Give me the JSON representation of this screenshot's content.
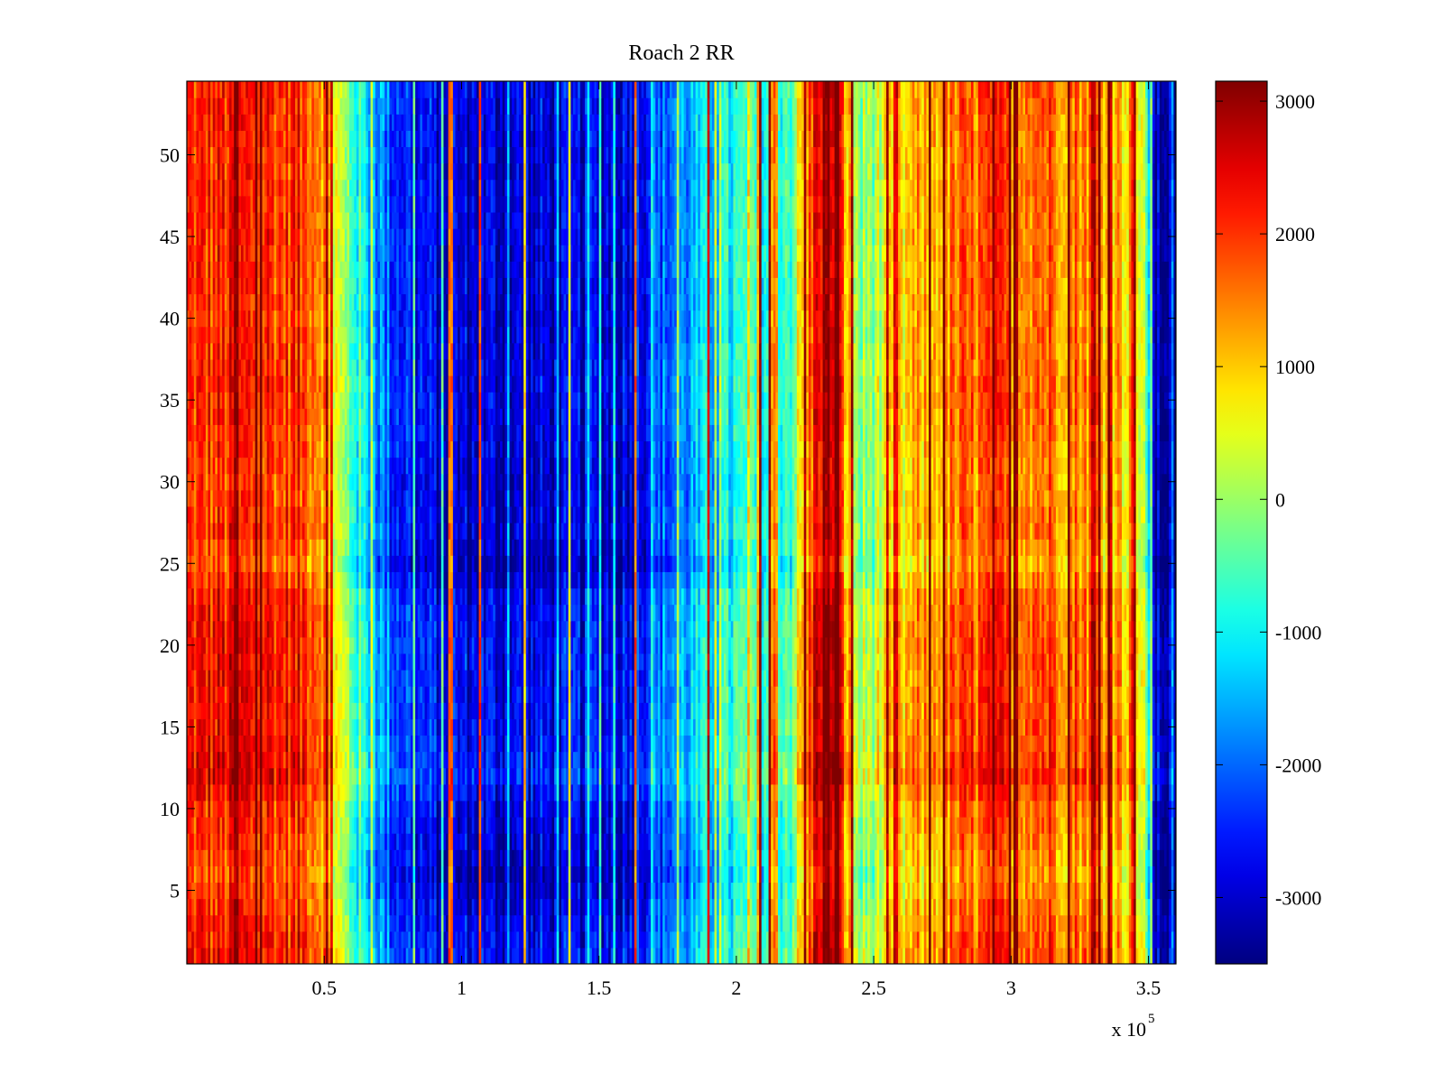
{
  "chart_data": {
    "type": "heatmap",
    "title": "Roach 2 RR",
    "xlabel": "",
    "ylabel": "",
    "x_multiplier_label": "x 10",
    "x_multiplier_exponent": "5",
    "xlim": [
      0,
      3.6
    ],
    "ylim": [
      0.5,
      54.5
    ],
    "x_ticks": [
      0.5,
      1,
      1.5,
      2,
      2.5,
      3,
      3.5
    ],
    "x_tick_labels": [
      "0.5",
      "1",
      "1.5",
      "2",
      "2.5",
      "3",
      "3.5"
    ],
    "y_ticks": [
      5,
      10,
      15,
      20,
      25,
      30,
      35,
      40,
      45,
      50
    ],
    "y_tick_labels": [
      "5",
      "10",
      "15",
      "20",
      "25",
      "30",
      "35",
      "40",
      "45",
      "50"
    ],
    "rows": 54,
    "colormap": "jet",
    "colorbar": {
      "range": [
        -3500,
        3150
      ],
      "ticks": [
        -3000,
        -2000,
        -1000,
        0,
        1000,
        2000,
        3000
      ],
      "tick_labels": [
        "-3000",
        "-2000",
        "-1000",
        "0",
        "1000",
        "2000",
        "3000"
      ]
    },
    "column_profile": {
      "x": [
        0.0,
        0.25,
        0.45,
        0.5,
        0.55,
        0.65,
        0.75,
        0.9,
        1.0,
        1.2,
        1.4,
        1.6,
        1.7,
        1.8,
        2.0,
        2.2,
        2.3,
        2.35,
        2.4,
        2.45,
        2.55,
        2.7,
        2.9,
        3.0,
        3.1,
        3.3,
        3.45,
        3.5,
        3.52,
        3.6
      ],
      "values": [
        1900,
        2050,
        1850,
        1500,
        200,
        -1200,
        -2300,
        -2900,
        -3000,
        -3050,
        -3000,
        -2800,
        -2300,
        -1800,
        -1000,
        -500,
        2600,
        2800,
        1200,
        -300,
        400,
        1200,
        1600,
        1700,
        1700,
        1400,
        900,
        -800,
        -3200,
        -3300
      ]
    },
    "row_profile": {
      "y": [
        1,
        3,
        6,
        8,
        10,
        12,
        14,
        17,
        20,
        23,
        25,
        27,
        30,
        33,
        36,
        40,
        45,
        50,
        54
      ],
      "values": [
        300,
        150,
        -250,
        0,
        100,
        550,
        350,
        250,
        300,
        200,
        -300,
        50,
        -100,
        50,
        150,
        0,
        100,
        50,
        150
      ]
    },
    "stripes": [
      {
        "x": 0.18,
        "value": 3000
      },
      {
        "x": 0.51,
        "value": 2900
      },
      {
        "x": 0.96,
        "value": 1500
      },
      {
        "x": 1.07,
        "value": 1800
      },
      {
        "x": 1.23,
        "value": 700
      },
      {
        "x": 1.39,
        "value": 400
      },
      {
        "x": 1.63,
        "value": 1600
      },
      {
        "x": 1.9,
        "value": 2500
      },
      {
        "x": 2.09,
        "value": 3100
      },
      {
        "x": 2.12,
        "value": 3050
      },
      {
        "x": 2.32,
        "value": 3150
      },
      {
        "x": 2.36,
        "value": 3150
      },
      {
        "x": 2.42,
        "value": 2900
      },
      {
        "x": 2.58,
        "value": 2400
      },
      {
        "x": 3.02,
        "value": 2800
      },
      {
        "x": 3.3,
        "value": 2700
      },
      {
        "x": 3.45,
        "value": 3000
      }
    ]
  }
}
